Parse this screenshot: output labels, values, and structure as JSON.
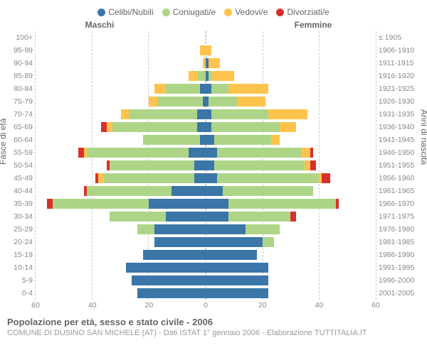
{
  "colors": {
    "celibi": "#3a76a8",
    "coniugati": "#aed587",
    "vedovi": "#fec34d",
    "divorziati": "#d9302b",
    "grid": "#cccccc",
    "bg": "#ffffff"
  },
  "legend": [
    {
      "label": "Celibi/Nubili",
      "key": "celibi"
    },
    {
      "label": "Coniugati/e",
      "key": "coniugati"
    },
    {
      "label": "Vedovi/e",
      "key": "vedovi"
    },
    {
      "label": "Divorziati/e",
      "key": "divorziati"
    }
  ],
  "gender_labels": {
    "male": "Maschi",
    "female": "Femmine"
  },
  "axis_titles": {
    "left": "Fasce di età",
    "right": "Anni di nascita"
  },
  "xlim": 60,
  "xticks_left": [
    60,
    40,
    20,
    0
  ],
  "xticks_right": [
    0,
    20,
    40,
    60
  ],
  "age_groups": [
    "100+",
    "95-99",
    "90-94",
    "85-89",
    "80-84",
    "75-79",
    "70-74",
    "65-69",
    "60-64",
    "55-59",
    "50-54",
    "45-49",
    "40-44",
    "35-39",
    "30-34",
    "25-29",
    "20-24",
    "15-19",
    "10-14",
    "5-9",
    "0-4"
  ],
  "birth_years": [
    "≤ 1905",
    "1906-1910",
    "1911-1915",
    "1916-1920",
    "1921-1925",
    "1926-1930",
    "1931-1935",
    "1936-1940",
    "1941-1945",
    "1946-1950",
    "1951-1955",
    "1956-1960",
    "1961-1965",
    "1966-1970",
    "1971-1975",
    "1976-1980",
    "1981-1985",
    "1986-1990",
    "1991-1995",
    "1996-2000",
    "2001-2005"
  ],
  "male": [
    {
      "celibi": 0,
      "coniugati": 0,
      "vedovi": 0,
      "divorziati": 0
    },
    {
      "celibi": 0,
      "coniugati": 0,
      "vedovi": 2,
      "divorziati": 0
    },
    {
      "celibi": 0,
      "coniugati": 0,
      "vedovi": 1,
      "divorziati": 0
    },
    {
      "celibi": 0,
      "coniugati": 3,
      "vedovi": 3,
      "divorziati": 0
    },
    {
      "celibi": 2,
      "coniugati": 12,
      "vedovi": 4,
      "divorziati": 0
    },
    {
      "celibi": 1,
      "coniugati": 16,
      "vedovi": 3,
      "divorziati": 0
    },
    {
      "celibi": 3,
      "coniugati": 24,
      "vedovi": 3,
      "divorziati": 0
    },
    {
      "celibi": 3,
      "coniugati": 30,
      "vedovi": 2,
      "divorziati": 2
    },
    {
      "celibi": 2,
      "coniugati": 20,
      "vedovi": 0,
      "divorziati": 0
    },
    {
      "celibi": 6,
      "coniugati": 36,
      "vedovi": 1,
      "divorziati": 2
    },
    {
      "celibi": 4,
      "coniugati": 30,
      "vedovi": 0,
      "divorziati": 1
    },
    {
      "celibi": 4,
      "coniugati": 32,
      "vedovi": 2,
      "divorziati": 1
    },
    {
      "celibi": 12,
      "coniugati": 30,
      "vedovi": 0,
      "divorziati": 1
    },
    {
      "celibi": 20,
      "coniugati": 34,
      "vedovi": 0,
      "divorziati": 2
    },
    {
      "celibi": 14,
      "coniugati": 20,
      "vedovi": 0,
      "divorziati": 0
    },
    {
      "celibi": 18,
      "coniugati": 6,
      "vedovi": 0,
      "divorziati": 0
    },
    {
      "celibi": 18,
      "coniugati": 0,
      "vedovi": 0,
      "divorziati": 0
    },
    {
      "celibi": 22,
      "coniugati": 0,
      "vedovi": 0,
      "divorziati": 0
    },
    {
      "celibi": 28,
      "coniugati": 0,
      "vedovi": 0,
      "divorziati": 0
    },
    {
      "celibi": 26,
      "coniugati": 0,
      "vedovi": 0,
      "divorziati": 0
    },
    {
      "celibi": 24,
      "coniugati": 0,
      "vedovi": 0,
      "divorziati": 0
    }
  ],
  "female": [
    {
      "celibi": 0,
      "coniugati": 0,
      "vedovi": 0,
      "divorziati": 0
    },
    {
      "celibi": 0,
      "coniugati": 0,
      "vedovi": 2,
      "divorziati": 0
    },
    {
      "celibi": 1,
      "coniugati": 0,
      "vedovi": 4,
      "divorziati": 0
    },
    {
      "celibi": 1,
      "coniugati": 1,
      "vedovi": 8,
      "divorziati": 0
    },
    {
      "celibi": 2,
      "coniugati": 6,
      "vedovi": 14,
      "divorziati": 0
    },
    {
      "celibi": 1,
      "coniugati": 10,
      "vedovi": 10,
      "divorziati": 0
    },
    {
      "celibi": 2,
      "coniugati": 20,
      "vedovi": 14,
      "divorziati": 0
    },
    {
      "celibi": 2,
      "coniugati": 24,
      "vedovi": 6,
      "divorziati": 0
    },
    {
      "celibi": 3,
      "coniugati": 20,
      "vedovi": 3,
      "divorziati": 0
    },
    {
      "celibi": 4,
      "coniugati": 30,
      "vedovi": 3,
      "divorziati": 1
    },
    {
      "celibi": 3,
      "coniugati": 32,
      "vedovi": 2,
      "divorziati": 2
    },
    {
      "celibi": 4,
      "coniugati": 36,
      "vedovi": 1,
      "divorziati": 3
    },
    {
      "celibi": 6,
      "coniugati": 32,
      "vedovi": 0,
      "divorziati": 0
    },
    {
      "celibi": 8,
      "coniugati": 38,
      "vedovi": 0,
      "divorziati": 1
    },
    {
      "celibi": 8,
      "coniugati": 22,
      "vedovi": 0,
      "divorziati": 2
    },
    {
      "celibi": 14,
      "coniugati": 12,
      "vedovi": 0,
      "divorziati": 0
    },
    {
      "celibi": 20,
      "coniugati": 4,
      "vedovi": 0,
      "divorziati": 0
    },
    {
      "celibi": 18,
      "coniugati": 0,
      "vedovi": 0,
      "divorziati": 0
    },
    {
      "celibi": 22,
      "coniugati": 0,
      "vedovi": 0,
      "divorziati": 0
    },
    {
      "celibi": 22,
      "coniugati": 0,
      "vedovi": 0,
      "divorziati": 0
    },
    {
      "celibi": 22,
      "coniugati": 0,
      "vedovi": 0,
      "divorziati": 0
    }
  ],
  "title": "Popolazione per età, sesso e stato civile - 2006",
  "subtitle": "COMUNE DI DUSINO SAN MICHELE (AT) - Dati ISTAT 1° gennaio 2006 - Elaborazione TUTTITALIA.IT"
}
